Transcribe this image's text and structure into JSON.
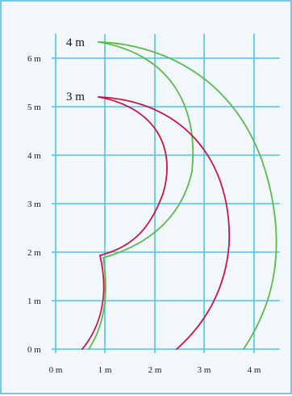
{
  "colors": {
    "background": "#f1f7fa",
    "border": "#75c8e8",
    "grid": "#4fc3e9",
    "outer_curve": "#5cb94a",
    "inner_curve": "#c4174b"
  },
  "x_ticks": [
    "0 m",
    "1 m",
    "2 m",
    "3 m",
    "4 m"
  ],
  "y_ticks": [
    "0 m",
    "1 m",
    "2 m",
    "3 m",
    "4 m",
    "5 m",
    "6 m"
  ],
  "curves": {
    "outer_label": "4 m",
    "inner_label": "3 m"
  }
}
